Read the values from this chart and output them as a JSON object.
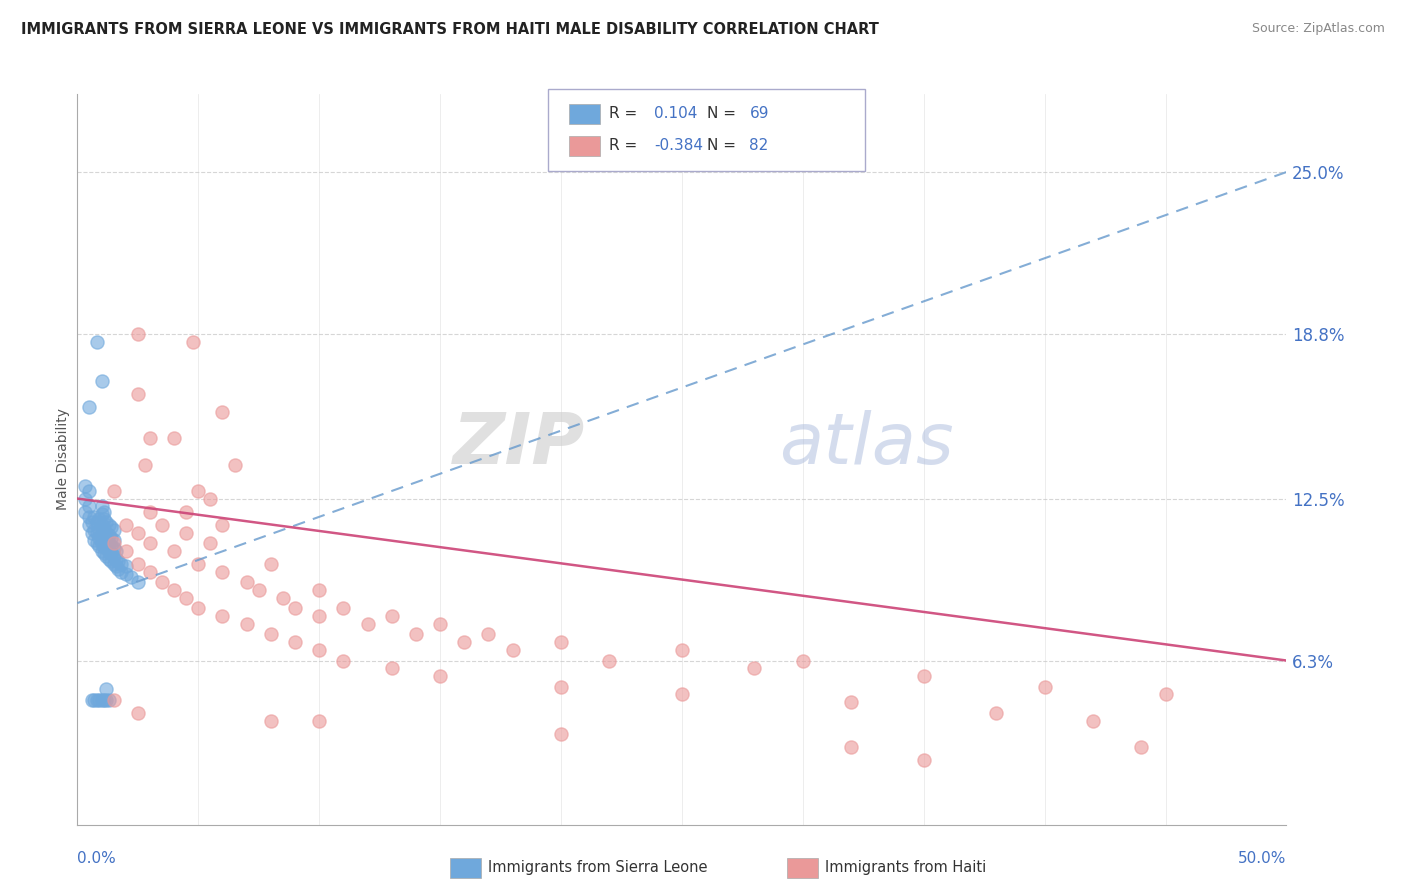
{
  "title": "IMMIGRANTS FROM SIERRA LEONE VS IMMIGRANTS FROM HAITI MALE DISABILITY CORRELATION CHART",
  "source": "Source: ZipAtlas.com",
  "ylabel": "Male Disability",
  "y_ticks": [
    0.063,
    0.125,
    0.188,
    0.25
  ],
  "y_tick_labels": [
    "6.3%",
    "12.5%",
    "18.8%",
    "25.0%"
  ],
  "x_range": [
    0.0,
    0.5
  ],
  "y_range": [
    0.0,
    0.28
  ],
  "sierra_leone_color": "#6fa8dc",
  "haiti_color": "#ea9999",
  "sierra_leone_R": 0.104,
  "haiti_R": -0.384,
  "sl_trend": [
    0.0,
    0.085,
    0.5,
    0.25
  ],
  "ht_trend": [
    0.0,
    0.125,
    0.5,
    0.063
  ],
  "watermark_zip": "ZIP",
  "watermark_atlas": "atlas",
  "sierra_leone_points": [
    [
      0.003,
      0.12
    ],
    [
      0.003,
      0.125
    ],
    [
      0.003,
      0.13
    ],
    [
      0.005,
      0.115
    ],
    [
      0.005,
      0.118
    ],
    [
      0.005,
      0.122
    ],
    [
      0.005,
      0.128
    ],
    [
      0.006,
      0.112
    ],
    [
      0.006,
      0.116
    ],
    [
      0.007,
      0.109
    ],
    [
      0.007,
      0.113
    ],
    [
      0.007,
      0.118
    ],
    [
      0.008,
      0.108
    ],
    [
      0.008,
      0.112
    ],
    [
      0.008,
      0.116
    ],
    [
      0.009,
      0.107
    ],
    [
      0.009,
      0.11
    ],
    [
      0.009,
      0.113
    ],
    [
      0.009,
      0.117
    ],
    [
      0.01,
      0.105
    ],
    [
      0.01,
      0.108
    ],
    [
      0.01,
      0.112
    ],
    [
      0.01,
      0.115
    ],
    [
      0.01,
      0.119
    ],
    [
      0.01,
      0.122
    ],
    [
      0.011,
      0.104
    ],
    [
      0.011,
      0.107
    ],
    [
      0.011,
      0.11
    ],
    [
      0.011,
      0.113
    ],
    [
      0.011,
      0.117
    ],
    [
      0.011,
      0.12
    ],
    [
      0.012,
      0.103
    ],
    [
      0.012,
      0.106
    ],
    [
      0.012,
      0.109
    ],
    [
      0.012,
      0.112
    ],
    [
      0.012,
      0.116
    ],
    [
      0.013,
      0.102
    ],
    [
      0.013,
      0.105
    ],
    [
      0.013,
      0.108
    ],
    [
      0.013,
      0.111
    ],
    [
      0.013,
      0.115
    ],
    [
      0.014,
      0.101
    ],
    [
      0.014,
      0.104
    ],
    [
      0.014,
      0.107
    ],
    [
      0.014,
      0.11
    ],
    [
      0.014,
      0.114
    ],
    [
      0.015,
      0.1
    ],
    [
      0.015,
      0.103
    ],
    [
      0.015,
      0.106
    ],
    [
      0.015,
      0.109
    ],
    [
      0.015,
      0.113
    ],
    [
      0.016,
      0.099
    ],
    [
      0.016,
      0.102
    ],
    [
      0.016,
      0.105
    ],
    [
      0.017,
      0.098
    ],
    [
      0.017,
      0.101
    ],
    [
      0.018,
      0.097
    ],
    [
      0.018,
      0.1
    ],
    [
      0.02,
      0.096
    ],
    [
      0.02,
      0.099
    ],
    [
      0.022,
      0.095
    ],
    [
      0.025,
      0.093
    ],
    [
      0.005,
      0.16
    ],
    [
      0.008,
      0.185
    ],
    [
      0.01,
      0.17
    ],
    [
      0.006,
      0.048
    ],
    [
      0.007,
      0.048
    ],
    [
      0.008,
      0.048
    ],
    [
      0.009,
      0.048
    ],
    [
      0.01,
      0.048
    ],
    [
      0.011,
      0.048
    ],
    [
      0.012,
      0.048
    ],
    [
      0.012,
      0.052
    ],
    [
      0.013,
      0.048
    ]
  ],
  "haiti_points": [
    [
      0.025,
      0.188
    ],
    [
      0.048,
      0.185
    ],
    [
      0.025,
      0.165
    ],
    [
      0.06,
      0.158
    ],
    [
      0.03,
      0.148
    ],
    [
      0.04,
      0.148
    ],
    [
      0.028,
      0.138
    ],
    [
      0.065,
      0.138
    ],
    [
      0.015,
      0.128
    ],
    [
      0.05,
      0.128
    ],
    [
      0.055,
      0.125
    ],
    [
      0.03,
      0.12
    ],
    [
      0.045,
      0.12
    ],
    [
      0.02,
      0.115
    ],
    [
      0.035,
      0.115
    ],
    [
      0.06,
      0.115
    ],
    [
      0.025,
      0.112
    ],
    [
      0.045,
      0.112
    ],
    [
      0.015,
      0.108
    ],
    [
      0.03,
      0.108
    ],
    [
      0.055,
      0.108
    ],
    [
      0.02,
      0.105
    ],
    [
      0.04,
      0.105
    ],
    [
      0.025,
      0.1
    ],
    [
      0.05,
      0.1
    ],
    [
      0.08,
      0.1
    ],
    [
      0.03,
      0.097
    ],
    [
      0.06,
      0.097
    ],
    [
      0.035,
      0.093
    ],
    [
      0.07,
      0.093
    ],
    [
      0.04,
      0.09
    ],
    [
      0.075,
      0.09
    ],
    [
      0.1,
      0.09
    ],
    [
      0.045,
      0.087
    ],
    [
      0.085,
      0.087
    ],
    [
      0.05,
      0.083
    ],
    [
      0.09,
      0.083
    ],
    [
      0.11,
      0.083
    ],
    [
      0.06,
      0.08
    ],
    [
      0.1,
      0.08
    ],
    [
      0.13,
      0.08
    ],
    [
      0.07,
      0.077
    ],
    [
      0.12,
      0.077
    ],
    [
      0.15,
      0.077
    ],
    [
      0.08,
      0.073
    ],
    [
      0.14,
      0.073
    ],
    [
      0.17,
      0.073
    ],
    [
      0.09,
      0.07
    ],
    [
      0.16,
      0.07
    ],
    [
      0.2,
      0.07
    ],
    [
      0.1,
      0.067
    ],
    [
      0.18,
      0.067
    ],
    [
      0.25,
      0.067
    ],
    [
      0.11,
      0.063
    ],
    [
      0.22,
      0.063
    ],
    [
      0.3,
      0.063
    ],
    [
      0.13,
      0.06
    ],
    [
      0.28,
      0.06
    ],
    [
      0.15,
      0.057
    ],
    [
      0.35,
      0.057
    ],
    [
      0.2,
      0.053
    ],
    [
      0.4,
      0.053
    ],
    [
      0.25,
      0.05
    ],
    [
      0.45,
      0.05
    ],
    [
      0.32,
      0.047
    ],
    [
      0.38,
      0.043
    ],
    [
      0.42,
      0.04
    ],
    [
      0.2,
      0.035
    ],
    [
      0.32,
      0.03
    ],
    [
      0.44,
      0.03
    ],
    [
      0.35,
      0.025
    ],
    [
      0.015,
      0.048
    ],
    [
      0.025,
      0.043
    ],
    [
      0.08,
      0.04
    ],
    [
      0.1,
      0.04
    ]
  ]
}
